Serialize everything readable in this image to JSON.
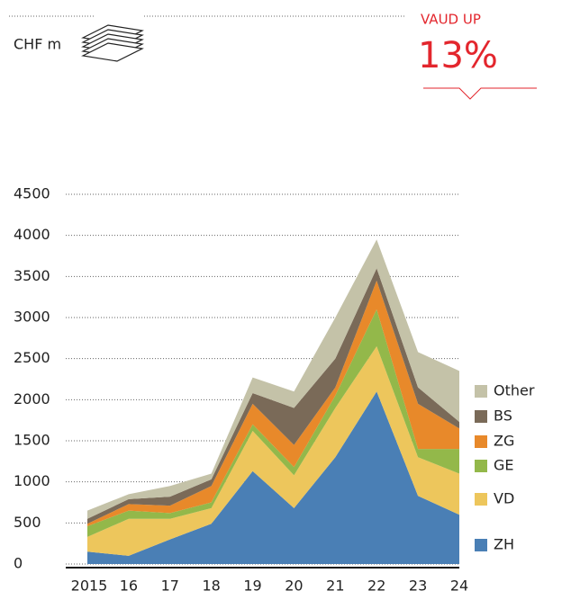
{
  "chart_data": {
    "type": "stacked_area",
    "unit_label": "CHF m",
    "annotation_title": "VAUD UP",
    "annotation_value": "13%",
    "categories": [
      "2015",
      "16",
      "17",
      "18",
      "19",
      "20",
      "21",
      "22",
      "23",
      "24"
    ],
    "series": [
      {
        "name": "ZH",
        "color": "#4a7fb5",
        "values": [
          150,
          100,
          300,
          490,
          1130,
          680,
          1300,
          2100,
          830,
          600
        ]
      },
      {
        "name": "VD",
        "color": "#edc65c",
        "values": [
          180,
          450,
          250,
          190,
          490,
          400,
          600,
          550,
          470,
          500
        ]
      },
      {
        "name": "GE",
        "color": "#93b84a",
        "values": [
          130,
          100,
          70,
          70,
          80,
          100,
          150,
          450,
          100,
          300
        ]
      },
      {
        "name": "ZG",
        "color": "#e8892a",
        "values": [
          30,
          80,
          90,
          200,
          250,
          270,
          100,
          350,
          550,
          250
        ]
      },
      {
        "name": "BS",
        "color": "#7a6a58",
        "values": [
          60,
          60,
          110,
          80,
          130,
          450,
          350,
          150,
          200,
          80
        ]
      },
      {
        "name": "Other",
        "color": "#c4c2a8",
        "values": [
          100,
          60,
          130,
          70,
          190,
          200,
          500,
          350,
          430,
          620
        ]
      }
    ],
    "ylim": [
      0,
      4500
    ],
    "yticks": [
      0,
      500,
      1000,
      1500,
      2000,
      2500,
      3000,
      3500,
      4000,
      4500
    ],
    "grid": true
  }
}
